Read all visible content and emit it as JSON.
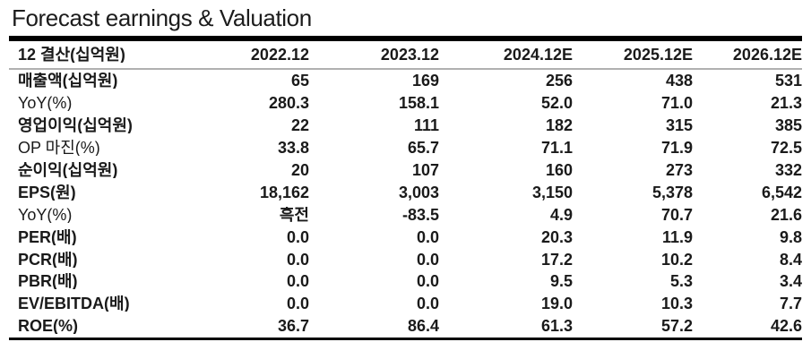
{
  "page_title": "Forecast earnings & Valuation",
  "colors": {
    "text": "#1a1a1a",
    "heavy_rule": "#000000",
    "light_rule": "#b0b0b0",
    "background": "#ffffff"
  },
  "chart_data": {
    "type": "table",
    "title": "Forecast earnings & Valuation",
    "columns": [
      "12 결산(십억원)",
      "2022.12",
      "2023.12",
      "2024.12E",
      "2025.12E",
      "2026.12E"
    ],
    "rows": [
      {
        "label": "매출액(십억원)",
        "emphasis": true,
        "values": [
          "65",
          "169",
          "256",
          "438",
          "531"
        ]
      },
      {
        "label": "YoY(%)",
        "emphasis": false,
        "values": [
          "280.3",
          "158.1",
          "52.0",
          "71.0",
          "21.3"
        ]
      },
      {
        "label": "영업이익(십억원)",
        "emphasis": true,
        "values": [
          "22",
          "111",
          "182",
          "315",
          "385"
        ]
      },
      {
        "label": "OP 마진(%)",
        "emphasis": false,
        "values": [
          "33.8",
          "65.7",
          "71.1",
          "71.9",
          "72.5"
        ]
      },
      {
        "label": "순이익(십억원)",
        "emphasis": true,
        "values": [
          "20",
          "107",
          "160",
          "273",
          "332"
        ]
      },
      {
        "label": "EPS(원)",
        "emphasis": true,
        "values": [
          "18,162",
          "3,003",
          "3,150",
          "5,378",
          "6,542"
        ]
      },
      {
        "label": "YoY(%)",
        "emphasis": false,
        "values": [
          "흑전",
          "-83.5",
          "4.9",
          "70.7",
          "21.6"
        ]
      },
      {
        "label": "PER(배)",
        "emphasis": true,
        "values": [
          "0.0",
          "0.0",
          "20.3",
          "11.9",
          "9.8"
        ]
      },
      {
        "label": "PCR(배)",
        "emphasis": true,
        "values": [
          "0.0",
          "0.0",
          "17.2",
          "10.2",
          "8.4"
        ]
      },
      {
        "label": "PBR(배)",
        "emphasis": true,
        "values": [
          "0.0",
          "0.0",
          "9.5",
          "5.3",
          "3.4"
        ]
      },
      {
        "label": "EV/EBITDA(배)",
        "emphasis": true,
        "values": [
          "0.0",
          "0.0",
          "19.0",
          "10.3",
          "7.7"
        ]
      },
      {
        "label": "ROE(%)",
        "emphasis": true,
        "values": [
          "36.7",
          "86.4",
          "61.3",
          "57.2",
          "42.6"
        ]
      }
    ]
  }
}
